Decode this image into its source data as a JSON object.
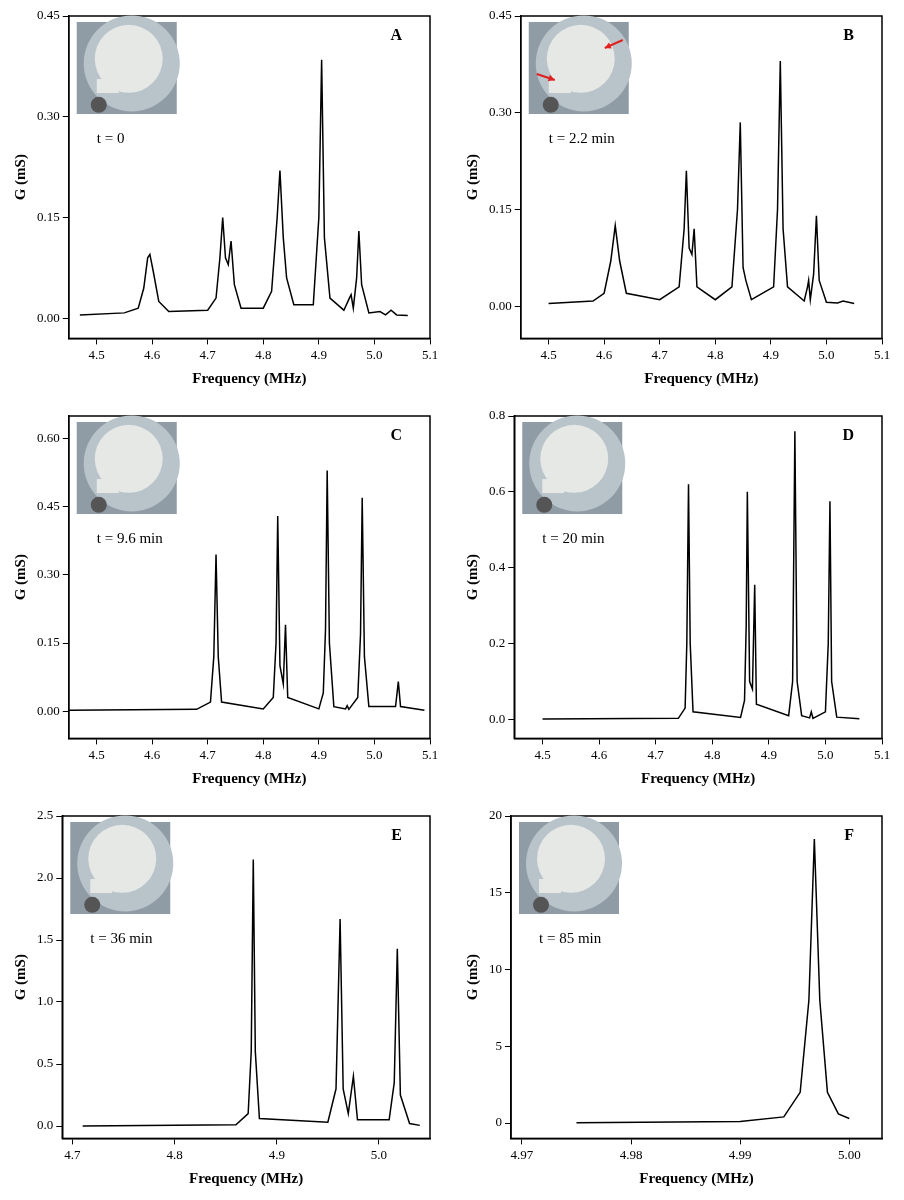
{
  "chart_data": [
    {
      "type": "line",
      "panel": "A",
      "annotation": "t = 0",
      "x_label": "Frequency (MHz)",
      "y_label": "G (mS)",
      "color": "#000000",
      "grid": false,
      "xlim": [
        4.45,
        5.1
      ],
      "xticks": [
        4.5,
        4.6,
        4.7,
        4.8,
        4.9,
        {
          "value": 5,
          "label": "5.0"
        },
        5.1
      ],
      "ylim": [
        -0.03,
        0.45
      ],
      "yticks": [
        {
          "value": 0,
          "label": "0.00"
        },
        0.15,
        {
          "value": 0.3,
          "label": "0.30"
        },
        0.45
      ],
      "x": [
        4.47,
        4.55,
        4.575,
        4.585,
        4.592,
        4.596,
        4.602,
        4.612,
        4.63,
        4.7,
        4.715,
        4.722,
        4.727,
        4.732,
        4.737,
        4.742,
        4.748,
        4.76,
        4.8,
        4.815,
        4.825,
        4.83,
        4.836,
        4.842,
        4.855,
        4.89,
        4.9,
        4.905,
        4.91,
        4.92,
        4.945,
        4.955,
        4.958,
        4.962,
        4.968,
        4.972,
        4.977,
        4.99,
        5.01,
        5.02,
        5.03,
        5.04,
        5.06
      ],
      "values": [
        0.005,
        0.008,
        0.015,
        0.045,
        0.09,
        0.095,
        0.07,
        0.025,
        0.01,
        0.012,
        0.03,
        0.09,
        0.15,
        0.09,
        0.08,
        0.115,
        0.05,
        0.015,
        0.015,
        0.04,
        0.15,
        0.22,
        0.12,
        0.06,
        0.02,
        0.02,
        0.15,
        0.385,
        0.12,
        0.03,
        0.012,
        0.03,
        0.035,
        0.015,
        0.06,
        0.13,
        0.05,
        0.008,
        0.01,
        0.005,
        0.012,
        0.005,
        0.004
      ]
    },
    {
      "type": "line",
      "panel": "B",
      "annotation": "t = 2.2 min",
      "x_label": "Frequency (MHz)",
      "y_label": "G (mS)",
      "color": "#000000",
      "grid": false,
      "xlim": [
        4.45,
        5.1
      ],
      "xticks": [
        4.5,
        4.6,
        4.7,
        4.8,
        4.9,
        {
          "value": 5,
          "label": "5.0"
        },
        5.1
      ],
      "ylim": [
        -0.05,
        0.45
      ],
      "yticks": [
        {
          "value": 0,
          "label": "0.00"
        },
        0.15,
        {
          "value": 0.3,
          "label": "0.30"
        },
        0.45
      ],
      "x": [
        4.5,
        4.58,
        4.6,
        4.612,
        4.62,
        4.628,
        4.64,
        4.7,
        4.735,
        4.744,
        4.748,
        4.753,
        4.758,
        4.762,
        4.767,
        4.8,
        4.83,
        4.84,
        4.845,
        4.85,
        4.855,
        4.865,
        4.905,
        4.912,
        4.917,
        4.922,
        4.93,
        4.96,
        4.966,
        4.968,
        4.971,
        4.977,
        4.982,
        4.987,
        5.0,
        5.02,
        5.03,
        5.05
      ],
      "values": [
        0.004,
        0.008,
        0.02,
        0.07,
        0.125,
        0.07,
        0.02,
        0.01,
        0.03,
        0.12,
        0.21,
        0.09,
        0.08,
        0.12,
        0.03,
        0.01,
        0.03,
        0.15,
        0.285,
        0.06,
        0.04,
        0.01,
        0.03,
        0.15,
        0.38,
        0.12,
        0.03,
        0.008,
        0.03,
        0.04,
        0.01,
        0.05,
        0.14,
        0.04,
        0.006,
        0.005,
        0.008,
        0.004
      ]
    },
    {
      "type": "line",
      "panel": "C",
      "annotation": "t = 9.6 min",
      "x_label": "Frequency (MHz)",
      "y_label": "G (mS)",
      "color": "#000000",
      "grid": false,
      "xlim": [
        4.45,
        5.1
      ],
      "xticks": [
        4.5,
        4.6,
        4.7,
        4.8,
        4.9,
        {
          "value": 5,
          "label": "5.0"
        },
        5.1
      ],
      "ylim": [
        -0.06,
        0.65
      ],
      "yticks": [
        {
          "value": 0,
          "label": "0.00"
        },
        0.15,
        {
          "value": 0.3,
          "label": "0.30"
        },
        0.45,
        {
          "value": 0.6,
          "label": "0.60"
        }
      ],
      "x": [
        4.45,
        4.68,
        4.705,
        4.711,
        4.715,
        4.719,
        4.725,
        4.8,
        4.818,
        4.823,
        4.826,
        4.83,
        4.836,
        4.84,
        4.844,
        4.9,
        4.908,
        4.912,
        4.915,
        4.919,
        4.927,
        4.948,
        4.951,
        4.954,
        4.97,
        4.975,
        4.978,
        4.982,
        4.99,
        5.038,
        5.043,
        5.047,
        5.09
      ],
      "values": [
        0.002,
        0.004,
        0.02,
        0.12,
        0.345,
        0.12,
        0.02,
        0.005,
        0.03,
        0.15,
        0.43,
        0.1,
        0.06,
        0.19,
        0.03,
        0.005,
        0.04,
        0.18,
        0.53,
        0.15,
        0.01,
        0.005,
        0.012,
        0.004,
        0.03,
        0.17,
        0.47,
        0.12,
        0.01,
        0.01,
        0.065,
        0.01,
        0.002
      ]
    },
    {
      "type": "line",
      "panel": "D",
      "annotation": "t = 20 min",
      "x_label": "Frequency (MHz)",
      "y_label": "G (mS)",
      "color": "#000000",
      "grid": false,
      "xlim": [
        4.45,
        5.1
      ],
      "xticks": [
        4.5,
        4.6,
        4.7,
        4.8,
        4.9,
        {
          "value": 5,
          "label": "5.0"
        },
        5.1
      ],
      "ylim": [
        -0.05,
        0.8
      ],
      "yticks": [
        {
          "value": 0,
          "label": "0.0"
        },
        0.2,
        0.4,
        0.6,
        0.8
      ],
      "x": [
        4.5,
        4.74,
        4.752,
        4.755,
        4.758,
        4.761,
        4.766,
        4.85,
        4.857,
        4.86,
        4.862,
        4.866,
        4.871,
        4.875,
        4.878,
        4.935,
        4.942,
        4.946,
        4.95,
        4.958,
        4.972,
        4.975,
        4.978,
        5.0,
        5.005,
        5.008,
        5.011,
        5.02,
        5.06
      ],
      "values": [
        0.001,
        0.003,
        0.03,
        0.2,
        0.62,
        0.2,
        0.02,
        0.005,
        0.05,
        0.25,
        0.6,
        0.1,
        0.08,
        0.355,
        0.04,
        0.01,
        0.1,
        0.76,
        0.1,
        0.01,
        0.004,
        0.02,
        0.003,
        0.02,
        0.2,
        0.575,
        0.1,
        0.006,
        0.002
      ]
    },
    {
      "type": "line",
      "panel": "E",
      "annotation": "t = 36 min",
      "x_label": "Frequency (MHz)",
      "y_label": "G (mS)",
      "color": "#000000",
      "grid": false,
      "xlim": [
        4.69,
        5.05
      ],
      "xticks": [
        4.7,
        4.8,
        4.9,
        {
          "value": 5,
          "label": "5.0"
        }
      ],
      "ylim": [
        -0.1,
        2.5
      ],
      "yticks": [
        {
          "value": 0,
          "label": "0.0"
        },
        0.5,
        {
          "value": 1,
          "label": "1.0"
        },
        1.5,
        {
          "value": 2,
          "label": "2.0"
        },
        2.5
      ],
      "x": [
        4.71,
        4.86,
        4.872,
        4.875,
        4.877,
        4.879,
        4.883,
        4.95,
        4.958,
        4.962,
        4.965,
        4.97,
        4.975,
        4.979,
        5.01,
        5.015,
        5.018,
        5.021,
        5.03,
        5.04
      ],
      "values": [
        0,
        0.01,
        0.1,
        0.6,
        2.15,
        0.6,
        0.06,
        0.03,
        0.3,
        1.67,
        0.3,
        0.1,
        0.4,
        0.05,
        0.05,
        0.35,
        1.43,
        0.25,
        0.02,
        0.005
      ]
    },
    {
      "type": "line",
      "panel": "F",
      "annotation": "t = 85 min",
      "x_label": "Frequency (MHz)",
      "y_label": "G (mS)",
      "color": "#000000",
      "grid": false,
      "xlim": [
        4.969,
        5.003
      ],
      "xticks": [
        4.97,
        4.98,
        4.99,
        {
          "value": 5,
          "label": "5.00"
        }
      ],
      "ylim": [
        -1,
        20
      ],
      "yticks": [
        0,
        5,
        10,
        15,
        20
      ],
      "x": [
        4.975,
        4.99,
        4.994,
        4.9955,
        4.9963,
        4.9968,
        4.9973,
        4.998,
        4.999,
        5.0
      ],
      "values": [
        0.02,
        0.1,
        0.4,
        2,
        8,
        18.5,
        8,
        2,
        0.6,
        0.3
      ]
    }
  ]
}
